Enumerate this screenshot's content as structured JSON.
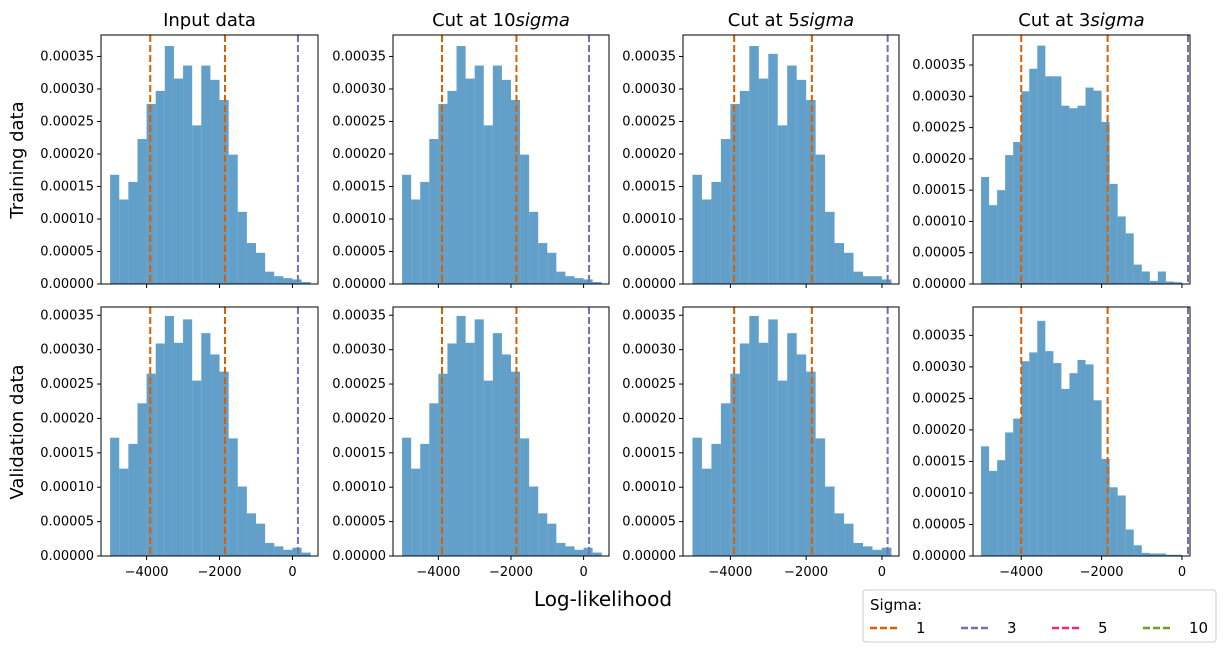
{
  "figure": {
    "supxlabel": "Log-likelihood",
    "row_labels": [
      "Training data",
      "Validation data"
    ],
    "legend": {
      "title": "Sigma:",
      "placement": "bottom-right",
      "entries": [
        {
          "label": "1",
          "color": "#d95f02"
        },
        {
          "label": "3",
          "color": "#7570b3"
        },
        {
          "label": "5",
          "color": "#e7298a"
        },
        {
          "label": "10",
          "color": "#66a61e"
        }
      ]
    }
  },
  "chart_data": [
    {
      "type": "bar",
      "title": "Input data",
      "ylabel": "Training data",
      "bin_edges": [
        -5000,
        -4750,
        -4500,
        -4250,
        -4000,
        -3750,
        -3500,
        -3250,
        -3000,
        -2750,
        -2500,
        -2250,
        -2000,
        -1750,
        -1500,
        -1250,
        -1000,
        -750,
        -500,
        -250,
        0,
        250,
        500
      ],
      "values": [
        0.000168,
        0.00013,
        0.000157,
        0.000223,
        0.000277,
        0.000297,
        0.000366,
        0.000316,
        0.000336,
        0.000244,
        0.000336,
        0.000314,
        0.000283,
        0.000199,
        0.000111,
        6.3e-05,
        4.8e-05,
        1.9e-05,
        1.2e-05,
        9e-06,
        7e-06,
        3e-06
      ],
      "xlim": [
        -5250,
        700
      ],
      "ylim": [
        0,
        0.000383
      ],
      "xticks": [
        -4000,
        -2000,
        0
      ],
      "xticklabels_visible": false,
      "yticks": [
        0,
        5e-05,
        0.0001,
        0.00015,
        0.0002,
        0.00025,
        0.0003,
        0.00035
      ],
      "yticklabels": [
        "0.00000",
        "0.00005",
        "0.00010",
        "0.00015",
        "0.00020",
        "0.00025",
        "0.00030",
        "0.00035"
      ],
      "vlines": [
        {
          "x": -3900,
          "sigma": "1"
        },
        {
          "x": -1850,
          "sigma": "1"
        },
        {
          "x": 150,
          "sigma": "3"
        }
      ],
      "bar_color": "#1f77b4"
    },
    {
      "type": "bar",
      "title": "Cut at 10$sigma$",
      "title_text": "Cut at 10",
      "title_italic": "sigma",
      "bin_edges": [
        -5000,
        -4750,
        -4500,
        -4250,
        -4000,
        -3750,
        -3500,
        -3250,
        -3000,
        -2750,
        -2500,
        -2250,
        -2000,
        -1750,
        -1500,
        -1250,
        -1000,
        -750,
        -500,
        -250,
        0,
        250,
        500
      ],
      "values": [
        0.000168,
        0.00013,
        0.000157,
        0.000223,
        0.000277,
        0.000297,
        0.000366,
        0.000316,
        0.000336,
        0.000244,
        0.000336,
        0.000314,
        0.000283,
        0.000199,
        0.000111,
        6.3e-05,
        4.8e-05,
        1.9e-05,
        1.2e-05,
        9e-06,
        7e-06,
        3e-06
      ],
      "xlim": [
        -5250,
        700
      ],
      "ylim": [
        0,
        0.000383
      ],
      "xticks": [
        -4000,
        -2000,
        0
      ],
      "xticklabels_visible": false,
      "yticks": [
        0,
        5e-05,
        0.0001,
        0.00015,
        0.0002,
        0.00025,
        0.0003,
        0.00035
      ],
      "yticklabels": [
        "0.00000",
        "0.00005",
        "0.00010",
        "0.00015",
        "0.00020",
        "0.00025",
        "0.00030",
        "0.00035"
      ],
      "vlines": [
        {
          "x": -3900,
          "sigma": "1"
        },
        {
          "x": -1850,
          "sigma": "1"
        },
        {
          "x": 150,
          "sigma": "3"
        }
      ],
      "bar_color": "#1f77b4"
    },
    {
      "type": "bar",
      "title": "Cut at 5$sigma$",
      "title_text": "Cut at 5",
      "title_italic": "sigma",
      "bin_edges": [
        -5000,
        -4750,
        -4500,
        -4250,
        -4000,
        -3750,
        -3500,
        -3250,
        -3000,
        -2750,
        -2500,
        -2250,
        -2000,
        -1750,
        -1500,
        -1250,
        -1000,
        -750,
        -500,
        -250,
        0,
        250
      ],
      "values": [
        0.000168,
        0.00013,
        0.000157,
        0.000223,
        0.000277,
        0.000297,
        0.000366,
        0.000316,
        0.000354,
        0.000244,
        0.000336,
        0.000314,
        0.000283,
        0.000199,
        0.000111,
        6.3e-05,
        4.8e-05,
        1.9e-05,
        1.2e-05,
        1.2e-05,
        7e-06
      ],
      "xlim": [
        -5250,
        450
      ],
      "ylim": [
        0,
        0.000383
      ],
      "xticks": [
        -4000,
        -2000,
        0
      ],
      "xticklabels_visible": false,
      "yticks": [
        0,
        5e-05,
        0.0001,
        0.00015,
        0.0002,
        0.00025,
        0.0003,
        0.00035
      ],
      "yticklabels": [
        "0.00000",
        "0.00005",
        "0.00010",
        "0.00015",
        "0.00020",
        "0.00025",
        "0.00030",
        "0.00035"
      ],
      "vlines": [
        {
          "x": -3900,
          "sigma": "1"
        },
        {
          "x": -1850,
          "sigma": "1"
        },
        {
          "x": 150,
          "sigma": "3"
        }
      ],
      "bar_color": "#1f77b4"
    },
    {
      "type": "bar",
      "title": "Cut at 3$sigma$",
      "title_text": "Cut at 3",
      "title_italic": "sigma",
      "bin_edges": [
        -5000,
        -4800,
        -4600,
        -4400,
        -4200,
        -4000,
        -3800,
        -3600,
        -3400,
        -3200,
        -3000,
        -2800,
        -2600,
        -2400,
        -2200,
        -2000,
        -1800,
        -1600,
        -1400,
        -1200,
        -1000,
        -800,
        -600,
        -400,
        -200,
        0
      ],
      "values": [
        0.000171,
        0.000126,
        0.00015,
        0.000206,
        0.000227,
        0.000308,
        0.000344,
        0.000381,
        0.000332,
        0.000332,
        0.000285,
        0.000281,
        0.000285,
        0.000314,
        0.000309,
        0.000259,
        0.00016,
        0.000108,
        8.1e-05,
        3.1e-05,
        2e-05,
        5e-06,
        2e-05,
        4e-06,
        3e-06
      ],
      "xlim": [
        -5200,
        200
      ],
      "ylim": [
        0,
        0.000398
      ],
      "xticks": [
        -4000,
        -2000,
        0
      ],
      "xticklabels_visible": false,
      "yticks": [
        0,
        5e-05,
        0.0001,
        0.00015,
        0.0002,
        0.00025,
        0.0003,
        0.00035
      ],
      "yticklabels": [
        "0.00000",
        "0.00005",
        "0.00010",
        "0.00015",
        "0.00020",
        "0.00025",
        "0.00030",
        "0.00035"
      ],
      "vlines": [
        {
          "x": -4000,
          "sigma": "1"
        },
        {
          "x": -1850,
          "sigma": "1"
        },
        {
          "x": 150,
          "sigma": "3"
        }
      ],
      "bar_color": "#1f77b4"
    },
    {
      "type": "bar",
      "ylabel": "Validation data",
      "bin_edges": [
        -5000,
        -4750,
        -4500,
        -4250,
        -4000,
        -3750,
        -3500,
        -3250,
        -3000,
        -2750,
        -2500,
        -2250,
        -2000,
        -1750,
        -1500,
        -1250,
        -1000,
        -750,
        -500,
        -250,
        0,
        250,
        500
      ],
      "values": [
        0.000172,
        0.000127,
        0.000163,
        0.000222,
        0.000265,
        0.000309,
        0.000349,
        0.00031,
        0.000344,
        0.000255,
        0.000324,
        0.000293,
        0.000268,
        0.000171,
        0.000101,
        6.2e-05,
        4.7e-05,
        1.9e-05,
        1.4e-05,
        9e-06,
        1.2e-05,
        5e-06
      ],
      "xlim": [
        -5250,
        700
      ],
      "ylim": [
        0,
        0.000362
      ],
      "xticks": [
        -4000,
        -2000,
        0
      ],
      "xticklabels": [
        "−4000",
        "−2000",
        "0"
      ],
      "yticks": [
        0,
        5e-05,
        0.0001,
        0.00015,
        0.0002,
        0.00025,
        0.0003,
        0.00035
      ],
      "yticklabels": [
        "0.00000",
        "0.00005",
        "0.00010",
        "0.00015",
        "0.00020",
        "0.00025",
        "0.00030",
        "0.00035"
      ],
      "vlines": [
        {
          "x": -3900,
          "sigma": "1"
        },
        {
          "x": -1850,
          "sigma": "1"
        },
        {
          "x": 150,
          "sigma": "3"
        }
      ],
      "bar_color": "#1f77b4"
    },
    {
      "type": "bar",
      "bin_edges": [
        -5000,
        -4750,
        -4500,
        -4250,
        -4000,
        -3750,
        -3500,
        -3250,
        -3000,
        -2750,
        -2500,
        -2250,
        -2000,
        -1750,
        -1500,
        -1250,
        -1000,
        -750,
        -500,
        -250,
        0,
        250,
        500
      ],
      "values": [
        0.000172,
        0.000127,
        0.000163,
        0.000222,
        0.000265,
        0.000309,
        0.000349,
        0.00031,
        0.000344,
        0.000255,
        0.000324,
        0.000293,
        0.000268,
        0.000171,
        0.000101,
        6.2e-05,
        4.7e-05,
        1.9e-05,
        1.4e-05,
        9e-06,
        1.2e-05,
        5e-06
      ],
      "xlim": [
        -5250,
        700
      ],
      "ylim": [
        0,
        0.000362
      ],
      "xticks": [
        -4000,
        -2000,
        0
      ],
      "xticklabels": [
        "−4000",
        "−2000",
        "0"
      ],
      "yticks": [
        0,
        5e-05,
        0.0001,
        0.00015,
        0.0002,
        0.00025,
        0.0003,
        0.00035
      ],
      "yticklabels": [
        "0.00000",
        "0.00005",
        "0.00010",
        "0.00015",
        "0.00020",
        "0.00025",
        "0.00030",
        "0.00035"
      ],
      "vlines": [
        {
          "x": -3900,
          "sigma": "1"
        },
        {
          "x": -1850,
          "sigma": "1"
        },
        {
          "x": 150,
          "sigma": "3"
        }
      ],
      "bar_color": "#1f77b4"
    },
    {
      "type": "bar",
      "bin_edges": [
        -5000,
        -4750,
        -4500,
        -4250,
        -4000,
        -3750,
        -3500,
        -3250,
        -3000,
        -2750,
        -2500,
        -2250,
        -2000,
        -1750,
        -1500,
        -1250,
        -1000,
        -750,
        -500,
        -250,
        0,
        250
      ],
      "values": [
        0.000172,
        0.000127,
        0.000163,
        0.000222,
        0.000265,
        0.000309,
        0.000349,
        0.00031,
        0.000344,
        0.000255,
        0.000324,
        0.000293,
        0.000268,
        0.000171,
        0.000101,
        6.2e-05,
        4.7e-05,
        1.9e-05,
        1.4e-05,
        9e-06,
        1.2e-05
      ],
      "xlim": [
        -5250,
        450
      ],
      "ylim": [
        0,
        0.000362
      ],
      "xticks": [
        -4000,
        -2000,
        0
      ],
      "xticklabels": [
        "−4000",
        "−2000",
        "0"
      ],
      "yticks": [
        0,
        5e-05,
        0.0001,
        0.00015,
        0.0002,
        0.00025,
        0.0003,
        0.00035
      ],
      "yticklabels": [
        "0.00000",
        "0.00005",
        "0.00010",
        "0.00015",
        "0.00020",
        "0.00025",
        "0.00030",
        "0.00035"
      ],
      "vlines": [
        {
          "x": -3900,
          "sigma": "1"
        },
        {
          "x": -1850,
          "sigma": "1"
        },
        {
          "x": 150,
          "sigma": "3"
        }
      ],
      "bar_color": "#1f77b4"
    },
    {
      "type": "bar",
      "bin_edges": [
        -5000,
        -4800,
        -4600,
        -4400,
        -4200,
        -4000,
        -3800,
        -3600,
        -3400,
        -3200,
        -3000,
        -2800,
        -2600,
        -2400,
        -2200,
        -2000,
        -1800,
        -1600,
        -1400,
        -1200,
        -1000,
        -800,
        -600,
        -400,
        -200,
        0
      ],
      "values": [
        0.000174,
        0.000135,
        0.000152,
        0.000196,
        0.000218,
        0.000309,
        0.000323,
        0.000373,
        0.000325,
        0.000306,
        0.000265,
        0.00029,
        0.000311,
        0.000304,
        0.000247,
        0.000154,
        0.000109,
        9.6e-05,
        4.2e-05,
        1.7e-05,
        5e-06,
        4e-06,
        4e-06,
        2e-06,
        2e-06
      ],
      "xlim": [
        -5200,
        200
      ],
      "ylim": [
        0,
        0.000395
      ],
      "xticks": [
        -4000,
        -2000,
        0
      ],
      "xticklabels": [
        "−4000",
        "−2000",
        "0"
      ],
      "yticks": [
        0,
        5e-05,
        0.0001,
        0.00015,
        0.0002,
        0.00025,
        0.0003,
        0.00035
      ],
      "yticklabels": [
        "0.00000",
        "0.00005",
        "0.00010",
        "0.00015",
        "0.00020",
        "0.00025",
        "0.00030",
        "0.00035"
      ],
      "vlines": [
        {
          "x": -4000,
          "sigma": "1"
        },
        {
          "x": -1850,
          "sigma": "1"
        },
        {
          "x": 150,
          "sigma": "3"
        }
      ],
      "bar_color": "#1f77b4"
    }
  ]
}
